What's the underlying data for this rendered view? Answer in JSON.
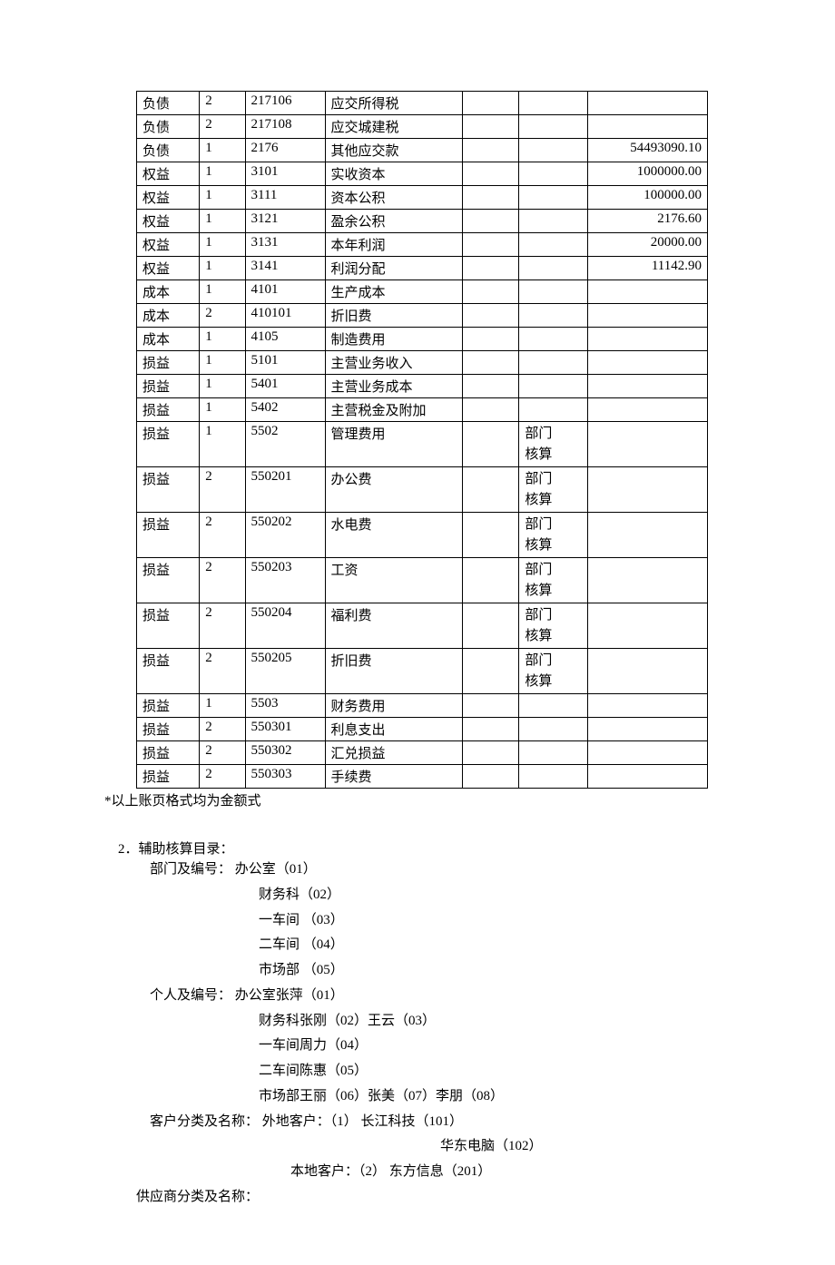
{
  "table": {
    "col_widths": [
      "11%",
      "8%",
      "14%",
      "24%",
      "10%",
      "12%",
      "21%"
    ],
    "rows": [
      {
        "c1": "负债",
        "c2": "2",
        "c3": "217106",
        "c4": "应交所得税",
        "c5": "",
        "c6": "",
        "c7": ""
      },
      {
        "c1": "负债",
        "c2": "2",
        "c3": "217108",
        "c4": "应交城建税",
        "c5": "",
        "c6": "",
        "c7": ""
      },
      {
        "c1": "负债",
        "c2": "1",
        "c3": "2176",
        "c4": "其他应交款",
        "c5": "",
        "c6": "",
        "c7": "54493090.10"
      },
      {
        "c1": "权益",
        "c2": "1",
        "c3": "3101",
        "c4": "实收资本",
        "c5": "",
        "c6": "",
        "c7": "1000000.00"
      },
      {
        "c1": "权益",
        "c2": "1",
        "c3": "3111",
        "c4": "资本公积",
        "c5": "",
        "c6": "",
        "c7": "100000.00"
      },
      {
        "c1": "权益",
        "c2": "1",
        "c3": "3121",
        "c4": "盈余公积",
        "c5": "",
        "c6": "",
        "c7": "2176.60"
      },
      {
        "c1": "权益",
        "c2": "1",
        "c3": "3131",
        "c4": "本年利润",
        "c5": "",
        "c6": "",
        "c7": "20000.00"
      },
      {
        "c1": "权益",
        "c2": "1",
        "c3": "3141",
        "c4": "利润分配",
        "c5": "",
        "c6": "",
        "c7": "11142.90"
      },
      {
        "c1": "成本",
        "c2": "1",
        "c3": "4101",
        "c4": "生产成本",
        "c5": "",
        "c6": "",
        "c7": ""
      },
      {
        "c1": "成本",
        "c2": "2",
        "c3": "410101",
        "c4": "折旧费",
        "c5": "",
        "c6": "",
        "c7": ""
      },
      {
        "c1": "成本",
        "c2": "1",
        "c3": "4105",
        "c4": "制造费用",
        "c5": "",
        "c6": "",
        "c7": ""
      },
      {
        "c1": "损益",
        "c2": "1",
        "c3": "5101",
        "c4": "主营业务收入",
        "c5": "",
        "c6": "",
        "c7": ""
      },
      {
        "c1": "损益",
        "c2": "1",
        "c3": "5401",
        "c4": "主营业务成本",
        "c5": "",
        "c6": "",
        "c7": ""
      },
      {
        "c1": "损益",
        "c2": "1",
        "c3": "5402",
        "c4": "主营税金及附加",
        "c5": "",
        "c6": "",
        "c7": ""
      },
      {
        "c1": "损益",
        "c2": "1",
        "c3": "5502",
        "c4": "管理费用",
        "c5": "",
        "c6": "部门\n核算",
        "c7": "",
        "multiline": true
      },
      {
        "c1": "损益",
        "c2": "2",
        "c3": "550201",
        "c4": "办公费",
        "c5": "",
        "c6": "部门\n核算",
        "c7": "",
        "multiline": true
      },
      {
        "c1": "损益",
        "c2": "2",
        "c3": "550202",
        "c4": "水电费",
        "c5": "",
        "c6": "部门\n核算",
        "c7": "",
        "multiline": true
      },
      {
        "c1": "损益",
        "c2": "2",
        "c3": "550203",
        "c4": "工资",
        "c5": "",
        "c6": "部门\n核算",
        "c7": "",
        "multiline": true
      },
      {
        "c1": "损益",
        "c2": "2",
        "c3": "550204",
        "c4": "福利费",
        "c5": "",
        "c6": "部门\n核算",
        "c7": "",
        "multiline": true
      },
      {
        "c1": "损益",
        "c2": "2",
        "c3": "550205",
        "c4": "折旧费",
        "c5": "",
        "c6": "部门\n核算",
        "c7": "",
        "multiline": true
      },
      {
        "c1": "损益",
        "c2": "1",
        "c3": "5503",
        "c4": "财务费用",
        "c5": "",
        "c6": "",
        "c7": ""
      },
      {
        "c1": "损益",
        "c2": "2",
        "c3": "550301",
        "c4": "利息支出",
        "c5": "",
        "c6": "",
        "c7": ""
      },
      {
        "c1": "损益",
        "c2": "2",
        "c3": "550302",
        "c4": "汇兑损益",
        "c5": "",
        "c6": "",
        "c7": ""
      },
      {
        "c1": "损益",
        "c2": "2",
        "c3": "550303",
        "c4": "手续费",
        "c5": "",
        "c6": "",
        "c7": ""
      }
    ]
  },
  "note": "*以上账页格式均为金额式",
  "section": {
    "title": "2．辅助核算目录：",
    "dept": {
      "label": "部门及编号：  办公室（01）",
      "items": [
        "财务科（02）",
        "一车间  （03）",
        "二车间  （04）",
        "市场部  （05）"
      ]
    },
    "person": {
      "label": "个人及编号：  办公室张萍（01）",
      "items": [
        "财务科张刚（02）王云（03）",
        "一车间周力（04）",
        "二车间陈惠（05）",
        "市场部王丽（06）张美（07）李朋（08）"
      ]
    },
    "customer": {
      "label": "客户分类及名称：    外地客户：（1）   长江科技（101）",
      "line2": "华东电脑（102）",
      "line3": "本地客户：（2）   东方信息（201）"
    },
    "supplier": {
      "label": "供应商分类及名称："
    }
  }
}
